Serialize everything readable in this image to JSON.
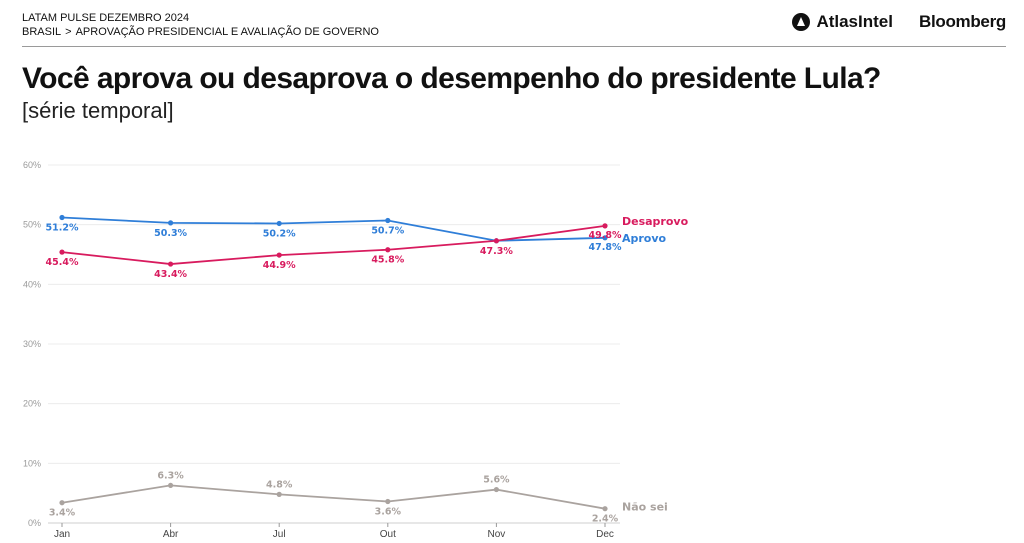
{
  "header": {
    "survey": "LATAM PULSE DEZEMBRO 2024",
    "breadcrumb": [
      "BRASIL",
      ">",
      "APROVAÇÃO PRESIDENCIAL E AVALIAÇÃO DE GOVERNO"
    ],
    "brands": [
      "AtlasIntel",
      "Bloomberg"
    ]
  },
  "title": "Você aprova ou desaprova o desempenho do presidente Lula?",
  "subtitle": "[série temporal]",
  "chart_data": {
    "type": "line",
    "categories": [
      "Jan",
      "Abr",
      "Jul",
      "Out",
      "Nov",
      "Dec"
    ],
    "ylim": [
      0,
      60
    ],
    "yticks": [
      "0%",
      "10%",
      "20%",
      "30%",
      "40%",
      "50%",
      "60%"
    ],
    "grid": true,
    "series": [
      {
        "name": "Aprovo",
        "color": "#2f7ed8",
        "values": [
          51.2,
          50.3,
          50.2,
          50.7,
          47.3,
          47.8
        ],
        "labels": [
          "51.2%",
          "50.3%",
          "50.2%",
          "50.7%",
          "",
          "47.8%"
        ]
      },
      {
        "name": "Desaprovo",
        "color": "#d81b5e",
        "values": [
          45.4,
          43.4,
          44.9,
          45.8,
          47.3,
          49.8
        ],
        "labels": [
          "45.4%",
          "43.4%",
          "44.9%",
          "45.8%",
          "47.3%",
          "49.8%"
        ]
      },
      {
        "name": "Não sei",
        "color": "#aaa39f",
        "values": [
          3.4,
          6.3,
          4.8,
          3.6,
          5.6,
          2.4
        ],
        "labels": [
          "3.4%",
          "6.3%",
          "4.8%",
          "3.6%",
          "5.6%",
          "2.4%"
        ]
      }
    ]
  }
}
